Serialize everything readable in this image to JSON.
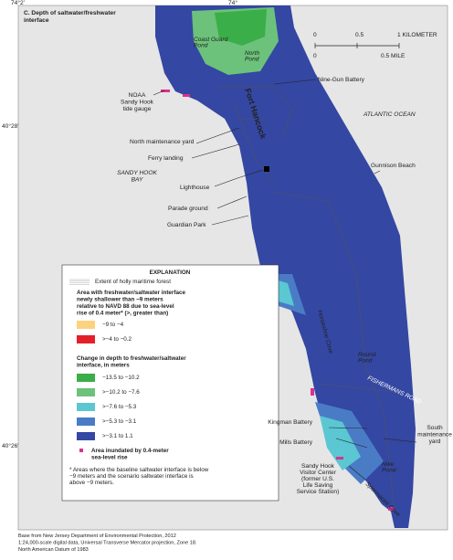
{
  "title": [
    "C. Depth of saltwater/freshwater",
    "interface"
  ],
  "coordinates": {
    "lon_west": "74°2'",
    "lon_east": "74°",
    "lat_north": "40°28'",
    "lat_south": "40°26'"
  },
  "scale_bar": {
    "km_ticks": [
      "0",
      "0.5",
      "1 KILOMETER"
    ],
    "mile_ticks": [
      "0",
      "0.5 MILE"
    ]
  },
  "labels": {
    "coast_guard_pond": [
      "Coast Guard",
      "Pond"
    ],
    "north_pond": [
      "North",
      "Pond"
    ],
    "nine_gun": "Nine-Gun Battery",
    "noaa": [
      "NOAA",
      "Sandy Hook",
      "tide gauge"
    ],
    "atlantic": "ATLANTIC OCEAN",
    "fort_hancock": "Fort Hancock",
    "north_yard": "North maintenance yard",
    "ferry": "Ferry landing",
    "bay": [
      "SANDY HOOK",
      "BAY"
    ],
    "gunnison": "Gunnison Beach",
    "lighthouse": "Lighthouse",
    "parade": "Parade ground",
    "guardian": "Guardian Park",
    "horseshoe": "Horseshoe Cove",
    "round_pond": [
      "Round",
      "Pond"
    ],
    "kingman": "Kingman Battery",
    "fishermans": "FISHERMANS ROAD",
    "mills": "Mills Battery",
    "south_yard": [
      "South",
      "maintenance",
      "yard"
    ],
    "nike": [
      "Nike",
      "Pond"
    ],
    "visitor": [
      "Sandy Hook",
      "Visitor Center",
      "(former U.S.",
      "Life Saving",
      "Service Station)"
    ],
    "spermaceti": "Spermaceti Cove"
  },
  "legend": {
    "heading": "EXPLANATION",
    "holly": "Extent of holly maritime forest",
    "group1": [
      "Area with freshwater/saltwater interface",
      "newly shallower than −9 meters",
      "relative to NAVD 88 due to sea-level",
      "rise of 0.4 meter* (>, greater than)"
    ],
    "group1_items": [
      {
        "label": "−9 to −4",
        "color": "#fdd27f"
      },
      {
        "label": ">−4 to −0.2",
        "color": "#e3202a"
      }
    ],
    "group2": [
      "Change in depth to freshwater/saltwater",
      "interface, in meters"
    ],
    "group2_items": [
      {
        "label": "−13.5 to −10.2",
        "color": "#3aae48"
      },
      {
        "label": ">−10.2 to −7.6",
        "color": "#6cc27a"
      },
      {
        "label": ">−7.6 to −5.3",
        "color": "#5ac7d2"
      },
      {
        "label": ">−5.3 to −3.1",
        "color": "#4a7cc6"
      },
      {
        "label": ">−3.1 to 1.1",
        "color": "#3447a2"
      }
    ],
    "inundated": [
      "Area inundated by 0.4-meter",
      "sea-level rise"
    ],
    "footnote": [
      "* Areas where the baseline saltwater interface is below",
      "−9 meters and the scenario saltwater interface is",
      "above −9 meters."
    ]
  },
  "source": [
    "Base from New Jersey Department of Environmental Protection, 2012",
    "1:24,000-scale digital data, Universal Transverse Mercator projection, Zone 18.",
    "North American Datum of 1983"
  ]
}
